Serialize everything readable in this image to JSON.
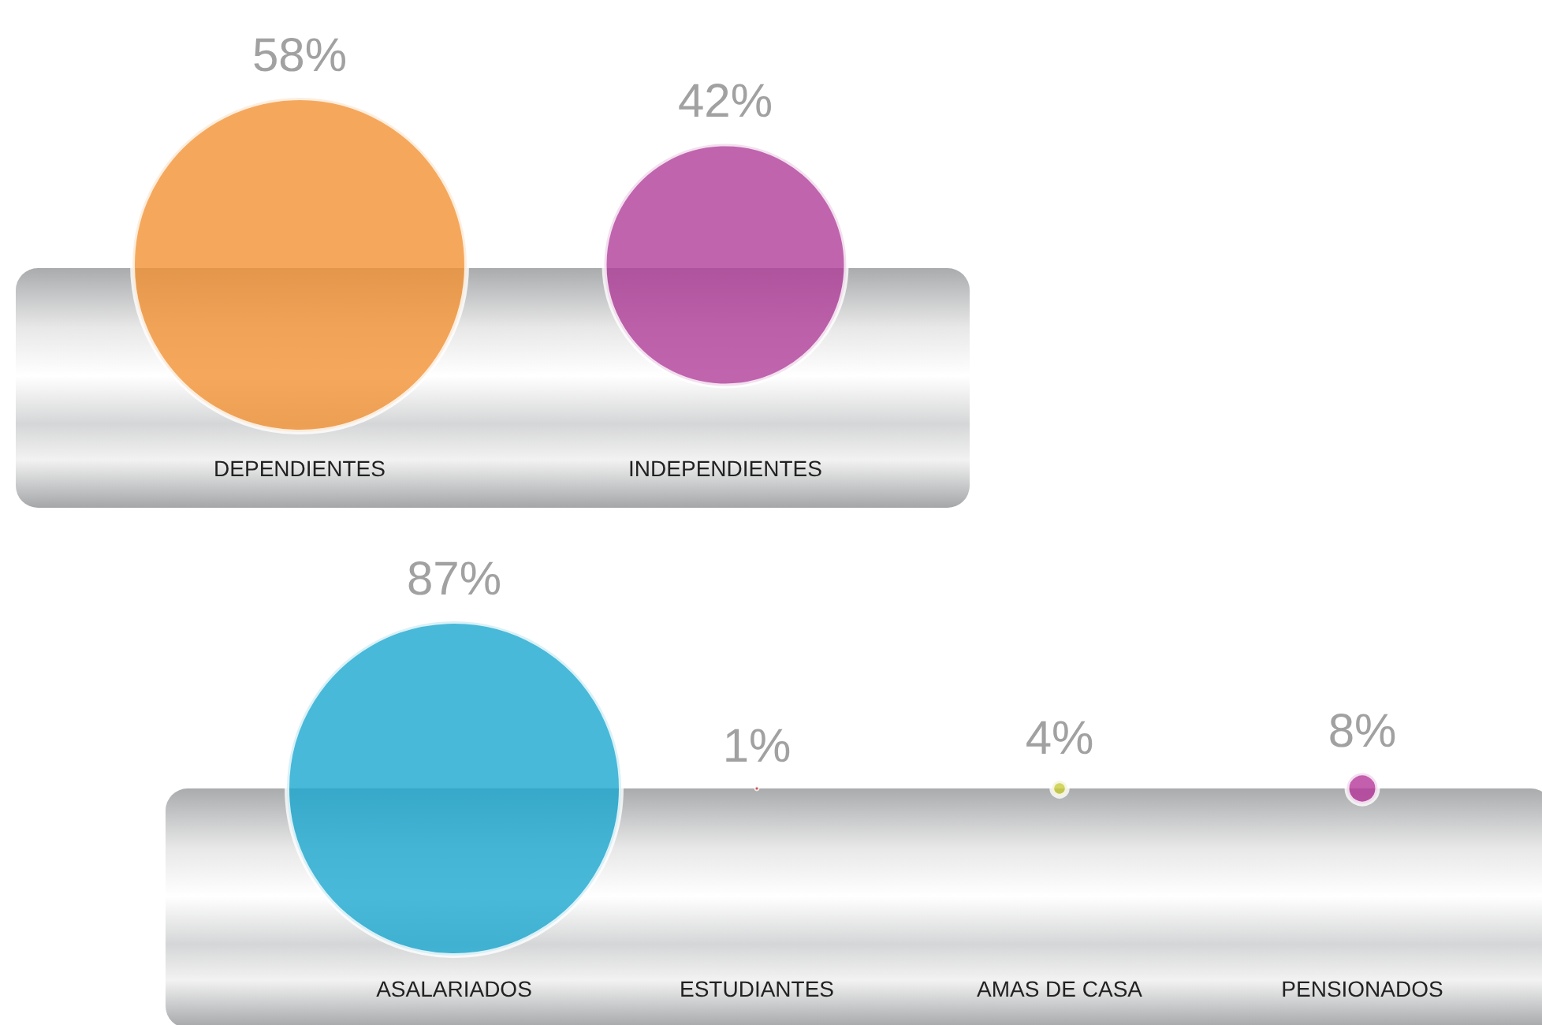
{
  "chart_data": [
    {
      "type": "other",
      "categories": [
        "DEPENDIENTES",
        "INDEPENDIENTES"
      ],
      "values": [
        58,
        42
      ],
      "value_labels": [
        "58%",
        "42%"
      ],
      "colors": [
        "#f39233",
        "#b03d9a"
      ]
    },
    {
      "type": "other",
      "categories": [
        "ASALARIADOS",
        "ESTUDIANTES",
        "AMAS DE CASA",
        "PENSIONADOS"
      ],
      "values": [
        87,
        1,
        4,
        8
      ],
      "value_labels": [
        "87%",
        "1%",
        "4%",
        "8%"
      ],
      "colors": [
        "#1aa8d0",
        "#d03030",
        "#c8cc3a",
        "#b5379a"
      ]
    }
  ]
}
